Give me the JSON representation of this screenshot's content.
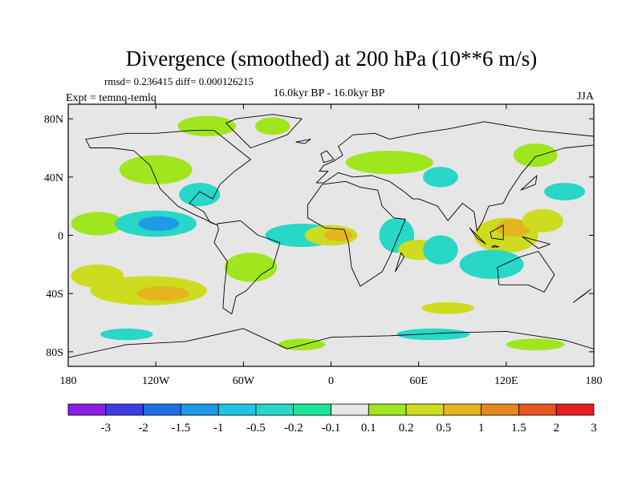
{
  "chart_data": {
    "type": "heatmap",
    "title": "Divergence (smoothed) at 200 hPa (10**6 m/s)",
    "stats": "rmsd= 0.236415  diff= 0.000126215",
    "left_label": "Expt = temnq-temlq",
    "center_label": "16.0kyr BP - 16.0kyr BP",
    "right_label": "JJA",
    "xlim": [
      -180,
      180
    ],
    "ylim": [
      -90,
      90
    ],
    "x_ticks": [
      {
        "value": -180,
        "label": "180"
      },
      {
        "value": -120,
        "label": "120W"
      },
      {
        "value": -60,
        "label": "60W"
      },
      {
        "value": 0,
        "label": "0"
      },
      {
        "value": 60,
        "label": "60E"
      },
      {
        "value": 120,
        "label": "120E"
      },
      {
        "value": 180,
        "label": "180"
      }
    ],
    "y_ticks": [
      {
        "value": 80,
        "label": "80N"
      },
      {
        "value": 40,
        "label": "40N"
      },
      {
        "value": 0,
        "label": "0"
      },
      {
        "value": -40,
        "label": "40S"
      },
      {
        "value": -80,
        "label": "80S"
      }
    ],
    "colorbar": {
      "labels": [
        "-3",
        "-2",
        "-1.5",
        "-1",
        "-0.5",
        "-0.2",
        "-0.1",
        "0.1",
        "0.2",
        "0.5",
        "1",
        "1.5",
        "2",
        "3"
      ],
      "colors": [
        "#8c1ee6",
        "#3c3ce6",
        "#1e6ee6",
        "#1e9be6",
        "#1ec3e6",
        "#28d7c8",
        "#1ee69b",
        "#e6e6e6",
        "#a0e61e",
        "#cddc1e",
        "#e6b41e",
        "#e6871e",
        "#e6551e",
        "#e61e1e"
      ]
    },
    "regions": [
      {
        "lon": -160,
        "lat": 8,
        "rx": 18,
        "ry": 8,
        "level": 8
      },
      {
        "lon": -120,
        "lat": 8,
        "rx": 28,
        "ry": 9,
        "level": 5
      },
      {
        "lon": -118,
        "lat": 8,
        "rx": 14,
        "ry": 5,
        "level": 3
      },
      {
        "lon": -160,
        "lat": -28,
        "rx": 18,
        "ry": 8,
        "level": 9
      },
      {
        "lon": -125,
        "lat": -38,
        "rx": 40,
        "ry": 10,
        "level": 9
      },
      {
        "lon": -115,
        "lat": -40,
        "rx": 18,
        "ry": 5,
        "level": 10
      },
      {
        "lon": -55,
        "lat": -22,
        "rx": 18,
        "ry": 10,
        "level": 8
      },
      {
        "lon": -120,
        "lat": 45,
        "rx": 25,
        "ry": 10,
        "level": 8
      },
      {
        "lon": -90,
        "lat": 28,
        "rx": 14,
        "ry": 8,
        "level": 5
      },
      {
        "lon": -85,
        "lat": 75,
        "rx": 20,
        "ry": 7,
        "level": 8
      },
      {
        "lon": -40,
        "lat": 75,
        "rx": 12,
        "ry": 6,
        "level": 8
      },
      {
        "lon": -20,
        "lat": 0,
        "rx": 25,
        "ry": 8,
        "level": 5
      },
      {
        "lon": 0,
        "lat": 0,
        "rx": 18,
        "ry": 7,
        "level": 9
      },
      {
        "lon": 5,
        "lat": 0,
        "rx": 10,
        "ry": 4,
        "level": 10
      },
      {
        "lon": 45,
        "lat": 0,
        "rx": 12,
        "ry": 12,
        "level": 5
      },
      {
        "lon": 60,
        "lat": -10,
        "rx": 14,
        "ry": 7,
        "level": 9
      },
      {
        "lon": 75,
        "lat": -10,
        "rx": 12,
        "ry": 10,
        "level": 5
      },
      {
        "lon": 40,
        "lat": 50,
        "rx": 30,
        "ry": 8,
        "level": 8
      },
      {
        "lon": 75,
        "lat": 40,
        "rx": 12,
        "ry": 7,
        "level": 5
      },
      {
        "lon": 120,
        "lat": 0,
        "rx": 22,
        "ry": 12,
        "level": 9
      },
      {
        "lon": 125,
        "lat": 5,
        "rx": 12,
        "ry": 6,
        "level": 10
      },
      {
        "lon": 145,
        "lat": 10,
        "rx": 14,
        "ry": 8,
        "level": 9
      },
      {
        "lon": 110,
        "lat": -20,
        "rx": 22,
        "ry": 10,
        "level": 5
      },
      {
        "lon": 140,
        "lat": 55,
        "rx": 15,
        "ry": 8,
        "level": 8
      },
      {
        "lon": 160,
        "lat": 30,
        "rx": 14,
        "ry": 6,
        "level": 5
      },
      {
        "lon": -140,
        "lat": -68,
        "rx": 18,
        "ry": 4,
        "level": 5
      },
      {
        "lon": -20,
        "lat": -75,
        "rx": 16,
        "ry": 4,
        "level": 8
      },
      {
        "lon": 70,
        "lat": -68,
        "rx": 25,
        "ry": 4,
        "level": 5
      },
      {
        "lon": 140,
        "lat": -75,
        "rx": 20,
        "ry": 4,
        "level": 8
      },
      {
        "lon": 80,
        "lat": -50,
        "rx": 18,
        "ry": 4,
        "level": 9
      }
    ],
    "land": [
      [
        [
          -168,
          66
        ],
        [
          -140,
          70
        ],
        [
          -120,
          70
        ],
        [
          -95,
          72
        ],
        [
          -80,
          72
        ],
        [
          -65,
          60
        ],
        [
          -55,
          52
        ],
        [
          -66,
          44
        ],
        [
          -76,
          35
        ],
        [
          -81,
          25
        ],
        [
          -90,
          30
        ],
        [
          -97,
          22
        ],
        [
          -87,
          16
        ],
        [
          -83,
          9
        ],
        [
          -78,
          7
        ],
        [
          -95,
          15
        ],
        [
          -105,
          20
        ],
        [
          -117,
          32
        ],
        [
          -124,
          48
        ],
        [
          -135,
          58
        ],
        [
          -150,
          60
        ],
        [
          -165,
          60
        ]
      ],
      [
        [
          -78,
          8
        ],
        [
          -62,
          10
        ],
        [
          -50,
          0
        ],
        [
          -35,
          -5
        ],
        [
          -40,
          -22
        ],
        [
          -48,
          -27
        ],
        [
          -58,
          -38
        ],
        [
          -65,
          -42
        ],
        [
          -68,
          -54
        ],
        [
          -74,
          -50
        ],
        [
          -73,
          -35
        ],
        [
          -71,
          -18
        ],
        [
          -80,
          -5
        ],
        [
          -77,
          4
        ]
      ],
      [
        [
          -10,
          36
        ],
        [
          -2,
          44
        ],
        [
          -8,
          44
        ],
        [
          -5,
          48
        ],
        [
          2,
          51
        ],
        [
          8,
          55
        ],
        [
          5,
          61
        ],
        [
          15,
          69
        ],
        [
          30,
          70
        ],
        [
          40,
          66
        ],
        [
          60,
          70
        ],
        [
          80,
          73
        ],
        [
          105,
          78
        ],
        [
          140,
          72
        ],
        [
          180,
          68
        ],
        [
          180,
          62
        ],
        [
          160,
          60
        ],
        [
          140,
          54
        ],
        [
          130,
          42
        ],
        [
          122,
          30
        ],
        [
          118,
          22
        ],
        [
          108,
          20
        ],
        [
          104,
          10
        ],
        [
          100,
          3
        ],
        [
          98,
          16
        ],
        [
          90,
          22
        ],
        [
          80,
          10
        ],
        [
          73,
          20
        ],
        [
          60,
          25
        ],
        [
          56,
          25
        ],
        [
          50,
          30
        ],
        [
          40,
          37
        ],
        [
          28,
          41
        ],
        [
          15,
          40
        ],
        [
          5,
          43
        ],
        [
          -5,
          36
        ]
      ],
      [
        [
          -16,
          21
        ],
        [
          -6,
          35
        ],
        [
          10,
          37
        ],
        [
          20,
          33
        ],
        [
          32,
          31
        ],
        [
          35,
          20
        ],
        [
          43,
          12
        ],
        [
          51,
          11
        ],
        [
          40,
          -15
        ],
        [
          35,
          -25
        ],
        [
          20,
          -35
        ],
        [
          14,
          -22
        ],
        [
          12,
          -5
        ],
        [
          9,
          4
        ],
        [
          -4,
          5
        ],
        [
          -16,
          12
        ]
      ],
      [
        [
          114,
          -22
        ],
        [
          129,
          -15
        ],
        [
          142,
          -11
        ],
        [
          153,
          -27
        ],
        [
          146,
          -39
        ],
        [
          135,
          -34
        ],
        [
          115,
          -34
        ]
      ],
      [
        [
          -180,
          -84
        ],
        [
          -140,
          -75
        ],
        [
          -100,
          -73
        ],
        [
          -60,
          -64
        ],
        [
          -30,
          -78
        ],
        [
          0,
          -70
        ],
        [
          40,
          -69
        ],
        [
          80,
          -67
        ],
        [
          120,
          -66
        ],
        [
          160,
          -72
        ],
        [
          180,
          -78
        ],
        [
          180,
          -90
        ],
        [
          -180,
          -90
        ]
      ],
      [
        [
          -55,
          60
        ],
        [
          -30,
          69
        ],
        [
          -20,
          80
        ],
        [
          -40,
          83
        ],
        [
          -65,
          80
        ],
        [
          -72,
          77
        ]
      ],
      [
        [
          95,
          5
        ],
        [
          106,
          -6
        ],
        [
          100,
          -2
        ]
      ],
      [
        [
          110,
          -8
        ],
        [
          115,
          -8
        ],
        [
          112,
          -7
        ]
      ],
      [
        [
          109,
          2
        ],
        [
          118,
          7
        ],
        [
          118,
          -3
        ],
        [
          110,
          -2
        ]
      ],
      [
        [
          131,
          -1
        ],
        [
          150,
          -6
        ],
        [
          142,
          -9
        ]
      ],
      [
        [
          130,
          31
        ],
        [
          141,
          41
        ],
        [
          140,
          35
        ]
      ],
      [
        [
          -5,
          50
        ],
        [
          2,
          52
        ],
        [
          -3,
          58
        ],
        [
          -7,
          56
        ]
      ],
      [
        [
          -24,
          64
        ],
        [
          -14,
          66
        ],
        [
          -18,
          63
        ]
      ],
      [
        [
          44,
          -25
        ],
        [
          50,
          -15
        ],
        [
          48,
          -12
        ]
      ],
      [
        [
          166,
          -46
        ],
        [
          178,
          -37
        ],
        [
          173,
          -41
        ]
      ]
    ]
  }
}
